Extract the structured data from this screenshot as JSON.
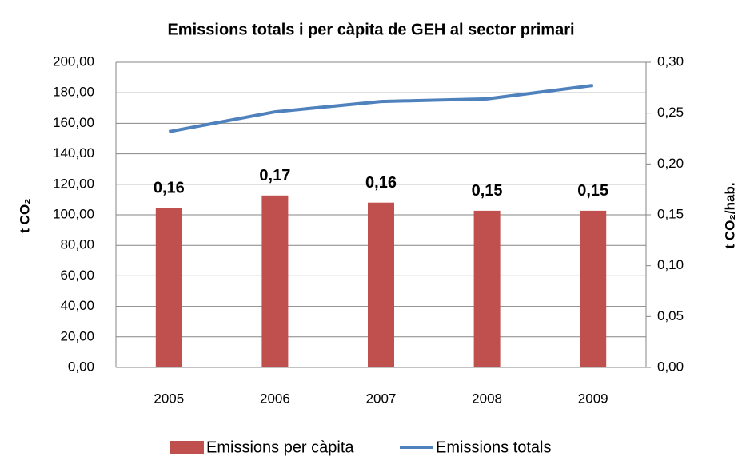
{
  "chart_data": {
    "type": "bar_line",
    "title": "Emissions totals i per càpita de GEH al sector primari",
    "y_label": "t CO₂",
    "y2_label": "t CO₂/hab.",
    "categories": [
      "2005",
      "2006",
      "2007",
      "2008",
      "2009"
    ],
    "series": [
      {
        "name": "Emissions per càpita",
        "type": "bar",
        "axis": "y2",
        "color": "#c0504d",
        "values": [
          0.157,
          0.169,
          0.162,
          0.154,
          0.154
        ],
        "value_labels": [
          "0,16",
          "0,17",
          "0,16",
          "0,15",
          "0,15"
        ]
      },
      {
        "name": "Emissions totals",
        "type": "line",
        "axis": "y",
        "color": "#4f81bd",
        "values": [
          154.5,
          167.5,
          174.3,
          176,
          184.8
        ]
      }
    ],
    "ylim": [
      0,
      200
    ],
    "yticks": [
      {
        "value": 0,
        "label": "0,00"
      },
      {
        "value": 20,
        "label": "20,00"
      },
      {
        "value": 40,
        "label": "40,00"
      },
      {
        "value": 60,
        "label": "60,00"
      },
      {
        "value": 80,
        "label": "80,00"
      },
      {
        "value": 100,
        "label": "100,00"
      },
      {
        "value": 120,
        "label": "120,00"
      },
      {
        "value": 140,
        "label": "140,00"
      },
      {
        "value": 160,
        "label": "160,00"
      },
      {
        "value": 180,
        "label": "180,00"
      },
      {
        "value": 200,
        "label": "200,00"
      }
    ],
    "y2lim": [
      0,
      0.3
    ],
    "y2ticks": [
      {
        "value": 0,
        "label": "0,00"
      },
      {
        "value": 0.05,
        "label": "0,05"
      },
      {
        "value": 0.1,
        "label": "0,10"
      },
      {
        "value": 0.15,
        "label": "0,15"
      },
      {
        "value": 0.2,
        "label": "0,20"
      },
      {
        "value": 0.25,
        "label": "0,25"
      },
      {
        "value": 0.3,
        "label": "0,30"
      }
    ],
    "grid": true,
    "legend": "bottom"
  }
}
